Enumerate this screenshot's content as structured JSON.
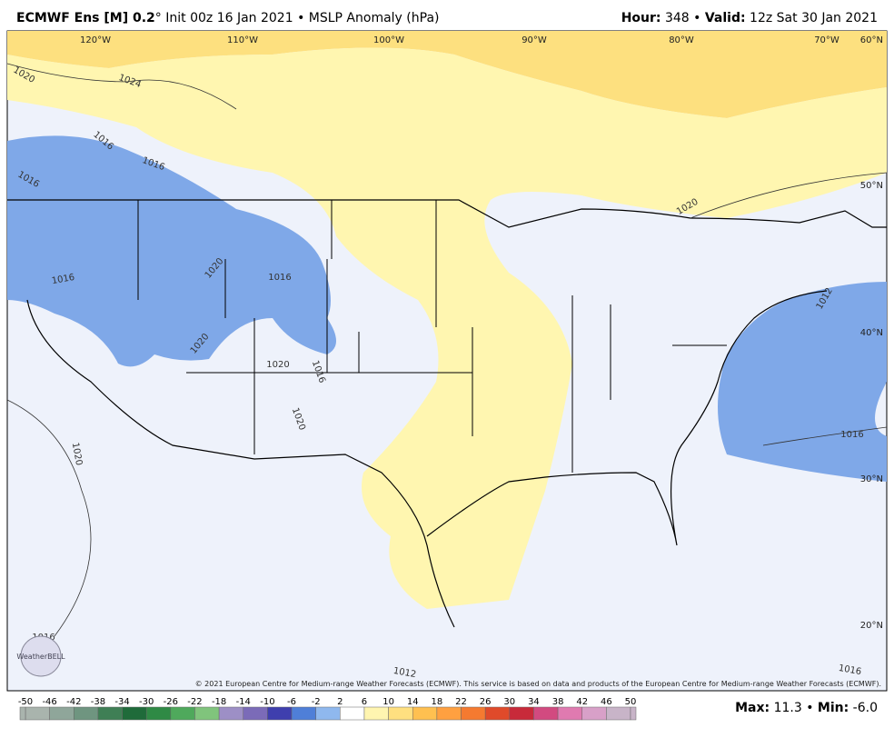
{
  "header": {
    "title_bold": "ECMWF Ens [M] 0.2",
    "title_rest": "° Init 00z 16 Jan 2021 • MSLP Anomaly (hPa)",
    "hour_label": "Hour:",
    "hour_value": " 348 • ",
    "valid_label": "Valid:",
    "valid_value": " 12z Sat 30 Jan 2021"
  },
  "map": {
    "longitudes": [
      "120°W",
      "110°W",
      "100°W",
      "90°W",
      "80°W",
      "70°W"
    ],
    "latitudes": [
      "60°N",
      "50°N",
      "40°N",
      "30°N",
      "20°N"
    ],
    "isobars": [
      "1020",
      "1024",
      "1016",
      "1016",
      "1016",
      "1020",
      "1016",
      "1016",
      "1020",
      "1020",
      "1016",
      "1020",
      "1020",
      "1020",
      "1012",
      "1016",
      "1016",
      "1012",
      "1016"
    ],
    "copyright": "© 2021 European Centre for Medium-range Weather Forecasts (ECMWF). This service is based on data and products of the European Centre for Medium-range Weather Forecasts (ECMWF).",
    "logo": "WeatherBELL"
  },
  "colorbar": {
    "ticks": [
      "-50",
      "-46",
      "-42",
      "-38",
      "-34",
      "-30",
      "-26",
      "-22",
      "-18",
      "-14",
      "-10",
      "-6",
      "-2",
      "2",
      "6",
      "10",
      "14",
      "18",
      "22",
      "26",
      "30",
      "34",
      "38",
      "42",
      "46",
      "50"
    ],
    "colors": [
      "#a9b4ad",
      "#8fa69a",
      "#6f9580",
      "#3f7f55",
      "#1f6b3a",
      "#2f8a45",
      "#4fa95c",
      "#80c47c",
      "#9d8fc6",
      "#7b6bb8",
      "#3f3fae",
      "#4f7fd8",
      "#8fb8ee",
      "#ffffff",
      "#fff5b0",
      "#ffe080",
      "#ffc050",
      "#ffa040",
      "#f57a30",
      "#e04a2a",
      "#c82a3a",
      "#d24a80",
      "#e07ab0",
      "#d8a0c8",
      "#c8b4c8"
    ]
  },
  "footer": {
    "max_label": "Max:",
    "max_value": " 11.3 • ",
    "min_label": "Min:",
    "min_value": " -6.0"
  }
}
